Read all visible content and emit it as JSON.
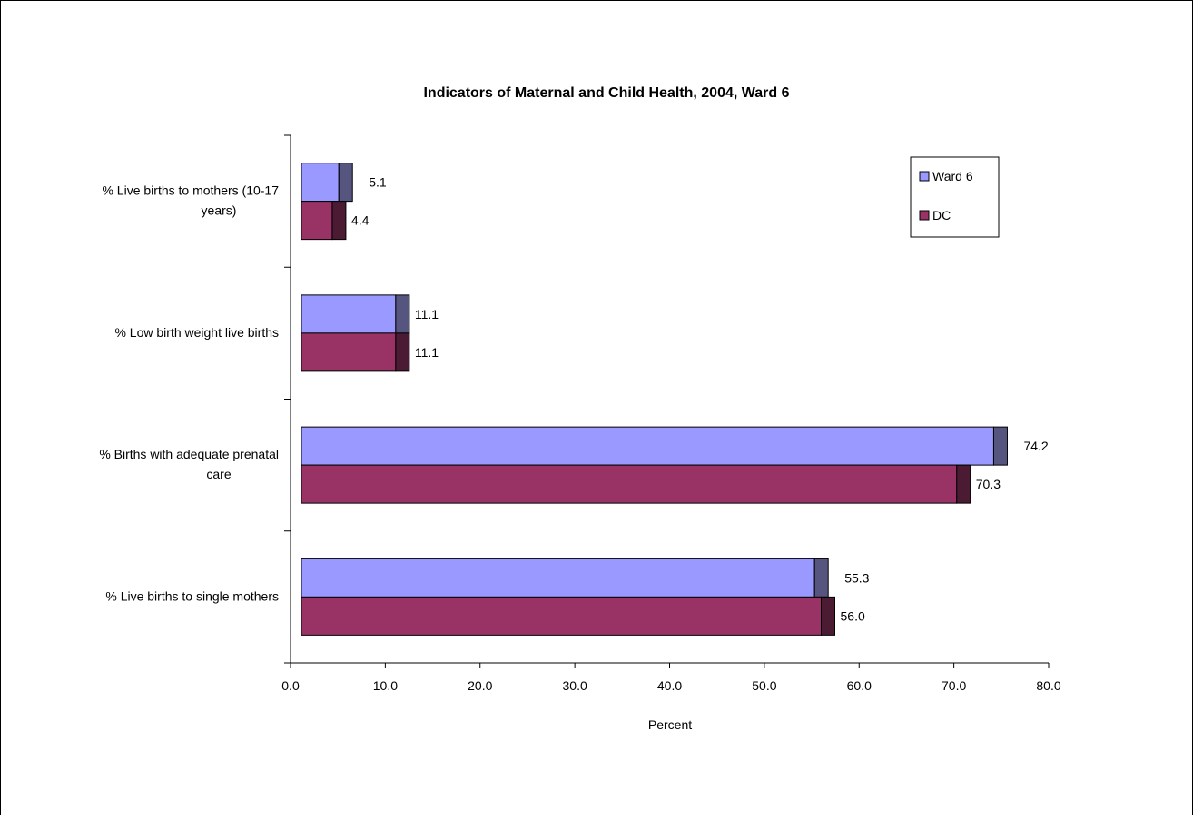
{
  "chart_data": {
    "type": "bar",
    "orientation": "horizontal",
    "title": "Indicators of Maternal and Child Health, 2004, Ward 6",
    "xlabel": "Percent",
    "ylabel": "",
    "xlim": [
      0,
      80
    ],
    "xticks": [
      "0.0",
      "10.0",
      "20.0",
      "30.0",
      "40.0",
      "50.0",
      "60.0",
      "70.0",
      "80.0"
    ],
    "categories": [
      {
        "lines": [
          "% Live births to mothers (10-17",
          "years)"
        ]
      },
      {
        "lines": [
          "% Low birth weight live births"
        ]
      },
      {
        "lines": [
          "% Births with adequate prenatal",
          "care"
        ]
      },
      {
        "lines": [
          "% Live births to single mothers"
        ]
      }
    ],
    "series": [
      {
        "name": "Ward 6",
        "color": "#9999ff",
        "dark_color": "#55557f",
        "values": [
          5.1,
          11.1,
          74.2,
          55.3
        ],
        "labels": [
          "5.1",
          "11.1",
          "74.2",
          "55.3"
        ]
      },
      {
        "name": "DC",
        "color": "#993366",
        "dark_color": "#4b1a33",
        "values": [
          4.4,
          11.1,
          70.3,
          56.0
        ],
        "labels": [
          "4.4",
          "11.1",
          "70.3",
          "56.0"
        ]
      }
    ],
    "legend_position": "top-right",
    "grid": false,
    "style": "3d"
  }
}
